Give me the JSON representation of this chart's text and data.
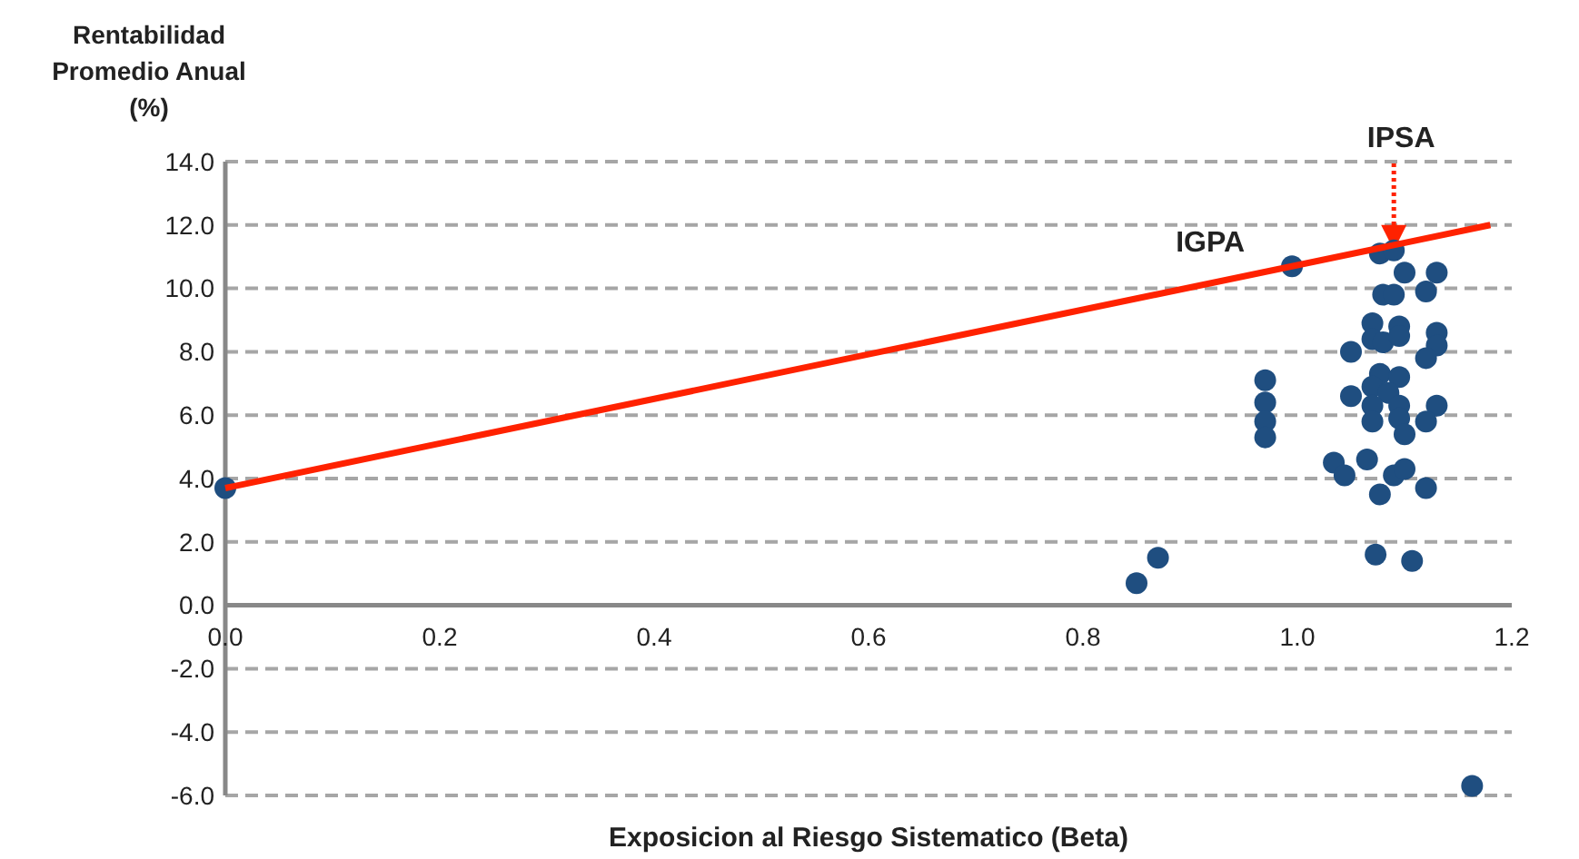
{
  "chart_data": {
    "type": "scatter",
    "ylabel": "Rentabilidad Promedio Anual (%)",
    "xlabel": "Exposicion al Riesgo Sistematico (Beta)",
    "xlim": [
      0,
      1.2
    ],
    "ylim": [
      -6,
      14
    ],
    "xticks": [
      {
        "value": 0,
        "label": "0.0"
      },
      {
        "value": 0.2,
        "label": "0.2"
      },
      {
        "value": 0.4,
        "label": "0.4"
      },
      {
        "value": 0.6,
        "label": "0.6"
      },
      {
        "value": 0.8,
        "label": "0.8"
      },
      {
        "value": 1,
        "label": "1.0"
      },
      {
        "value": 1.2,
        "label": "1.2"
      }
    ],
    "yticks": [
      {
        "value": -6,
        "label": "-6.0"
      },
      {
        "value": -4,
        "label": "-4.0"
      },
      {
        "value": -2,
        "label": "-2.0"
      },
      {
        "value": 0,
        "label": "0.0"
      },
      {
        "value": 2,
        "label": "2.0"
      },
      {
        "value": 4,
        "label": "4.0"
      },
      {
        "value": 6,
        "label": "6.0"
      },
      {
        "value": 8,
        "label": "8.0"
      },
      {
        "value": 10,
        "label": "10.0"
      },
      {
        "value": 12,
        "label": "12.0"
      },
      {
        "value": 14,
        "label": "14.0"
      }
    ],
    "grid": "y",
    "marker": "circle",
    "series": [
      {
        "color": "#1f4e80",
        "x": [
          0,
          0.85,
          0.87,
          0.97,
          0.97,
          0.97,
          0.97,
          0.995,
          1.077,
          1.09,
          1.1,
          1.13,
          1.12,
          1.08,
          1.09,
          1.07,
          1.095,
          1.07,
          1.08,
          1.095,
          1.05,
          1.13,
          1.13,
          1.12,
          1.077,
          1.095,
          1.07,
          1.085,
          1.05,
          1.07,
          1.095,
          1.13,
          1.07,
          1.095,
          1.12,
          1.1,
          1.034,
          1.044,
          1.065,
          1.09,
          1.1,
          1.077,
          1.12,
          1.073,
          1.107,
          1.163
        ],
        "values": [
          3.7,
          0.7,
          1.5,
          7.1,
          6.4,
          5.8,
          5.3,
          10.7,
          11.1,
          11.2,
          10.5,
          10.5,
          9.9,
          9.8,
          9.8,
          8.9,
          8.8,
          8.4,
          8.3,
          8.5,
          8.0,
          8.6,
          8.2,
          7.8,
          7.3,
          7.2,
          6.9,
          6.7,
          6.6,
          6.3,
          6.3,
          6.3,
          5.8,
          5.9,
          5.8,
          5.4,
          4.5,
          4.1,
          4.6,
          4.1,
          4.3,
          3.5,
          3.7,
          1.6,
          1.4,
          -5.7
        ]
      },
      {
        "type": "line",
        "color": "#ff2200",
        "marker": "none",
        "line_style": "solid",
        "x": [
          0,
          1.18
        ],
        "values": [
          3.7,
          12.0
        ]
      }
    ],
    "annotations": [
      {
        "text": "IGPA",
        "x": 0.995,
        "y": 10.7
      },
      {
        "text": "IPSA",
        "x": 1.09,
        "y": 11.2
      }
    ]
  }
}
